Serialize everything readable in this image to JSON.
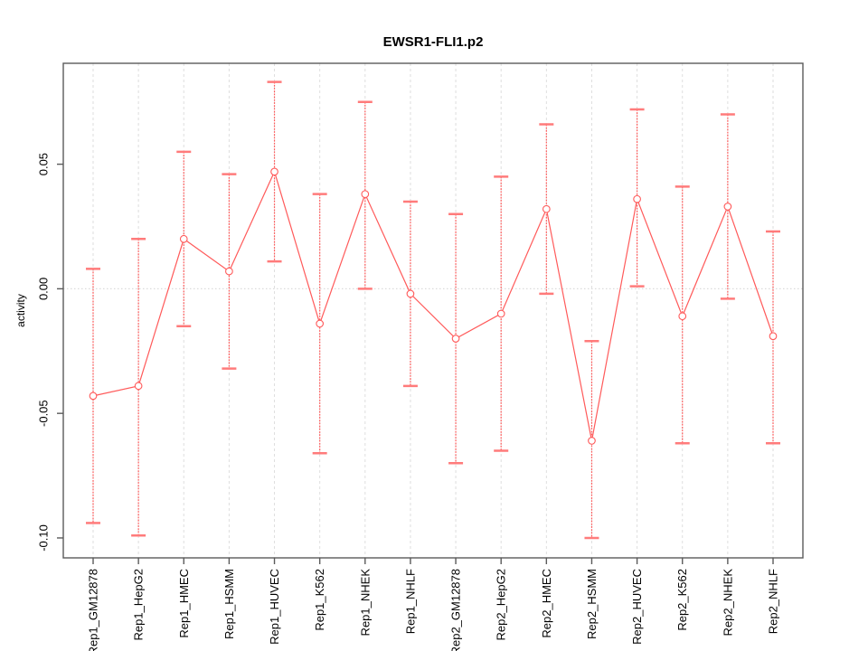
{
  "chart_data": {
    "type": "line",
    "title": "EWSR1-FLI1.p2",
    "xlabel": "",
    "ylabel": "activity",
    "legend": "none",
    "categories": [
      "Rep1_GM12878",
      "Rep1_HepG2",
      "Rep1_HMEC",
      "Rep1_HSMM",
      "Rep1_HUVEC",
      "Rep1_K562",
      "Rep1_NHEK",
      "Rep1_NHLF",
      "Rep2_GM12878",
      "Rep2_HepG2",
      "Rep2_HMEC",
      "Rep2_HSMM",
      "Rep2_HUVEC",
      "Rep2_K562",
      "Rep2_NHEK",
      "Rep2_NHLF"
    ],
    "series": [
      {
        "name": "activity",
        "values": [
          -0.043,
          -0.039,
          0.02,
          0.007,
          0.047,
          -0.014,
          0.038,
          -0.002,
          -0.02,
          -0.01,
          0.032,
          -0.061,
          0.036,
          -0.011,
          0.033,
          -0.019
        ],
        "ci_upper": [
          0.008,
          0.02,
          0.055,
          0.046,
          0.083,
          0.038,
          0.075,
          0.035,
          0.03,
          0.045,
          0.066,
          -0.021,
          0.072,
          0.041,
          0.07,
          0.023
        ],
        "ci_lower": [
          -0.094,
          -0.099,
          -0.015,
          -0.032,
          0.011,
          -0.066,
          0.0,
          -0.039,
          -0.07,
          -0.065,
          -0.002,
          -0.1,
          0.001,
          -0.062,
          -0.004,
          -0.062
        ]
      }
    ],
    "yticks": [
      "0.05",
      "0.00",
      "-0.05",
      "-0.10"
    ],
    "ylim": [
      -0.108,
      0.0905
    ],
    "grid": {
      "vertical_dashed_per_category": true,
      "horizontal_dotted_zero_line": true
    },
    "colors": {
      "series": "#ff5a5a",
      "cap": "#ff7b7b",
      "point_fill": "#ffffff",
      "grid": "#dedede",
      "zero_line": "#dbdbdb",
      "axis": "#5a5a5a",
      "text": "#000000"
    }
  }
}
